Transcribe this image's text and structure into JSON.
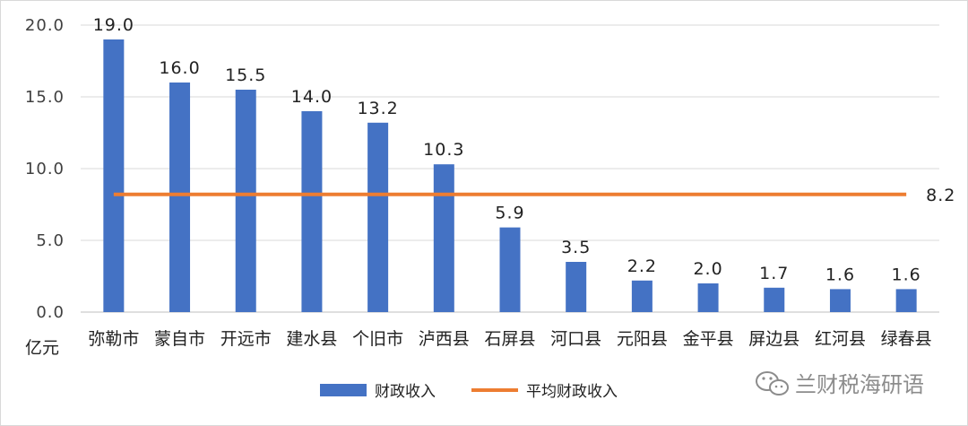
{
  "chart_data": {
    "type": "bar",
    "categories": [
      "弥勒市",
      "蒙自市",
      "开远市",
      "建水县",
      "个旧市",
      "泸西县",
      "石屏县",
      "河口县",
      "元阳县",
      "金平县",
      "屏边县",
      "红河县",
      "绿春县"
    ],
    "series": [
      {
        "name": "财政收入",
        "type": "bar",
        "values": [
          19.0,
          16.0,
          15.5,
          14.0,
          13.2,
          10.3,
          5.9,
          3.5,
          2.2,
          2.0,
          1.7,
          1.6,
          1.6
        ],
        "labels": [
          "19.0",
          "16.0",
          "15.5",
          "14.0",
          "13.2",
          "10.3",
          "5.9",
          "3.5",
          "2.2",
          "2.0",
          "1.7",
          "1.6",
          "1.6"
        ]
      },
      {
        "name": "平均财政收入",
        "type": "line",
        "value": 8.2,
        "label": "8.2"
      }
    ],
    "ylabel": "亿元",
    "ylim": [
      0,
      20
    ],
    "yticks": [
      0,
      5,
      10,
      15,
      20
    ],
    "ytick_labels": [
      "0.0",
      "5.0",
      "10.0",
      "15.0",
      "20.0"
    ],
    "grid": true,
    "legend": "bottom-center",
    "colors": {
      "bar": "#4472C4",
      "line": "#ED7D31",
      "grid": "#d9d9d9"
    }
  },
  "watermark": {
    "text": "兰财税海研语",
    "icon": "wechat-icon"
  }
}
